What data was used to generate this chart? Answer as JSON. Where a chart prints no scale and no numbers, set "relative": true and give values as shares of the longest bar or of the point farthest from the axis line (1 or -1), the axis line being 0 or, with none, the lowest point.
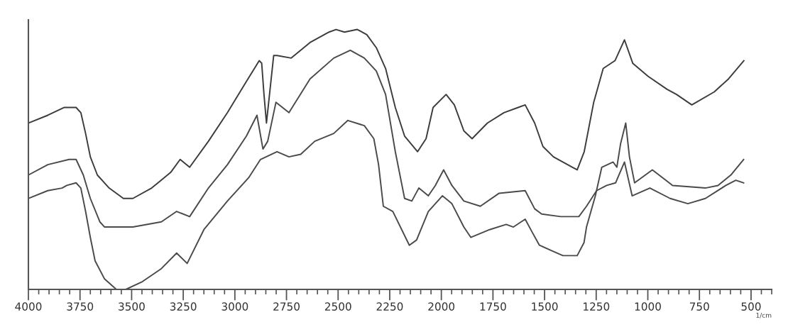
{
  "chart_data": {
    "type": "line",
    "xlabel": "1/cm",
    "relative": true,
    "line_style": "solid",
    "xlim": [
      4000,
      400
    ],
    "xticks": [
      4000,
      {
        "value": 3950,
        "label": null
      },
      {
        "value": 3900,
        "label": null
      },
      {
        "value": 3850,
        "label": null
      },
      {
        "value": 3800,
        "label": null
      },
      3750,
      {
        "value": 3700,
        "label": null
      },
      {
        "value": 3650,
        "label": null
      },
      {
        "value": 3600,
        "label": null
      },
      {
        "value": 3550,
        "label": null
      },
      3500,
      {
        "value": 3450,
        "label": null
      },
      {
        "value": 3400,
        "label": null
      },
      {
        "value": 3350,
        "label": null
      },
      {
        "value": 3300,
        "label": null
      },
      3250,
      {
        "value": 3200,
        "label": null
      },
      {
        "value": 3150,
        "label": null
      },
      {
        "value": 3100,
        "label": null
      },
      {
        "value": 3050,
        "label": null
      },
      3000,
      {
        "value": 2950,
        "label": null
      },
      {
        "value": 2900,
        "label": null
      },
      {
        "value": 2850,
        "label": null
      },
      {
        "value": 2800,
        "label": null
      },
      2750,
      {
        "value": 2700,
        "label": null
      },
      {
        "value": 2650,
        "label": null
      },
      {
        "value": 2600,
        "label": null
      },
      {
        "value": 2550,
        "label": null
      },
      2500,
      {
        "value": 2450,
        "label": null
      },
      {
        "value": 2400,
        "label": null
      },
      {
        "value": 2350,
        "label": null
      },
      {
        "value": 2300,
        "label": null
      },
      2250,
      {
        "value": 2200,
        "label": null
      },
      {
        "value": 2150,
        "label": null
      },
      {
        "value": 2100,
        "label": null
      },
      {
        "value": 2050,
        "label": null
      },
      2000,
      {
        "value": 1950,
        "label": null
      },
      {
        "value": 1900,
        "label": null
      },
      {
        "value": 1850,
        "label": null
      },
      {
        "value": 1800,
        "label": null
      },
      1750,
      {
        "value": 1700,
        "label": null
      },
      {
        "value": 1650,
        "label": null
      },
      {
        "value": 1600,
        "label": null
      },
      {
        "value": 1550,
        "label": null
      },
      1500,
      {
        "value": 1450,
        "label": null
      },
      {
        "value": 1400,
        "label": null
      },
      {
        "value": 1350,
        "label": null
      },
      {
        "value": 1300,
        "label": null
      },
      1250,
      {
        "value": 1200,
        "label": null
      },
      {
        "value": 1150,
        "label": null
      },
      {
        "value": 1100,
        "label": null
      },
      {
        "value": 1050,
        "label": null
      },
      1000,
      {
        "value": 950,
        "label": null
      },
      {
        "value": 900,
        "label": null
      },
      {
        "value": 850,
        "label": null
      },
      {
        "value": 800,
        "label": null
      },
      750,
      {
        "value": 700,
        "label": null
      },
      {
        "value": 650,
        "label": null
      },
      {
        "value": 600,
        "label": null
      },
      {
        "value": 550,
        "label": null
      },
      500,
      {
        "value": 450,
        "label": null
      },
      {
        "value": 400,
        "label": null
      }
    ],
    "series": [
      {
        "color": "#3c3c3c",
        "x": [
          4000,
          3906,
          3826,
          3769,
          3746,
          3723,
          3700,
          3666,
          3609,
          3540,
          3494,
          3403,
          3311,
          3265,
          3219,
          3128,
          3036,
          2944,
          2882,
          2870,
          2859,
          2847,
          2812,
          2796,
          2727,
          2636,
          2544,
          2510,
          2469,
          2407,
          2361,
          2315,
          2270,
          2223,
          2178,
          2115,
          2074,
          2040,
          1977,
          1937,
          1891,
          1851,
          1777,
          1697,
          1628,
          1594,
          1548,
          1508,
          1457,
          1365,
          1342,
          1308,
          1262,
          1216,
          1159,
          1113,
          1073,
          999,
          907,
          861,
          787,
          678,
          609,
          535
        ],
        "values": [
          0.64,
          0.67,
          0.7,
          0.7,
          0.68,
          0.6,
          0.51,
          0.44,
          0.39,
          0.35,
          0.35,
          0.39,
          0.45,
          0.5,
          0.47,
          0.57,
          0.68,
          0.8,
          0.88,
          0.87,
          0.75,
          0.64,
          0.9,
          0.9,
          0.89,
          0.95,
          0.99,
          1.0,
          0.99,
          1.0,
          0.98,
          0.93,
          0.85,
          0.7,
          0.59,
          0.53,
          0.58,
          0.7,
          0.75,
          0.71,
          0.61,
          0.58,
          0.64,
          0.68,
          0.7,
          0.71,
          0.64,
          0.55,
          0.51,
          0.47,
          0.46,
          0.53,
          0.72,
          0.85,
          0.88,
          0.96,
          0.87,
          0.82,
          0.77,
          0.75,
          0.71,
          0.76,
          0.81,
          0.88
        ]
      },
      {
        "color": "#4a4a4a",
        "x": [
          4000,
          3906,
          3803,
          3769,
          3734,
          3700,
          3654,
          3631,
          3494,
          3356,
          3282,
          3219,
          3128,
          3036,
          2944,
          2893,
          2864,
          2841,
          2801,
          2738,
          2636,
          2521,
          2441,
          2373,
          2315,
          2270,
          2223,
          2178,
          2143,
          2109,
          2063,
          2029,
          1989,
          1949,
          1891,
          1811,
          1720,
          1594,
          1548,
          1514,
          1422,
          1334,
          1297,
          1248,
          1199,
          1156,
          1113,
          1076,
          990,
          892,
          806,
          721,
          622,
          574,
          536
        ],
        "values": [
          0.44,
          0.48,
          0.5,
          0.5,
          0.44,
          0.35,
          0.26,
          0.24,
          0.24,
          0.26,
          0.3,
          0.28,
          0.39,
          0.48,
          0.59,
          0.67,
          0.54,
          0.57,
          0.72,
          0.68,
          0.81,
          0.89,
          0.92,
          0.89,
          0.84,
          0.75,
          0.53,
          0.35,
          0.34,
          0.39,
          0.36,
          0.4,
          0.46,
          0.4,
          0.34,
          0.32,
          0.37,
          0.38,
          0.31,
          0.29,
          0.28,
          0.28,
          0.32,
          0.38,
          0.4,
          0.41,
          0.49,
          0.36,
          0.39,
          0.35,
          0.33,
          0.35,
          0.4,
          0.42,
          0.41
        ]
      },
      {
        "color": "#4a4a4a",
        "x": [
          4000,
          3906,
          3837,
          3814,
          3769,
          3746,
          3723,
          3700,
          3677,
          3631,
          3574,
          3528,
          3448,
          3356,
          3282,
          3231,
          3150,
          3036,
          2933,
          2876,
          2796,
          2738,
          2681,
          2613,
          2521,
          2453,
          2373,
          2327,
          2304,
          2281,
          2235,
          2155,
          2120,
          2063,
          1995,
          1949,
          1891,
          1857,
          1766,
          1686,
          1651,
          1594,
          1560,
          1525,
          1468,
          1411,
          1342,
          1309,
          1297,
          1254,
          1223,
          1168,
          1150,
          1132,
          1107,
          1089,
          1064,
          978,
          880,
          721,
          660,
          598,
          536
        ],
        "values": [
          0.35,
          0.38,
          0.39,
          0.4,
          0.41,
          0.39,
          0.3,
          0.2,
          0.11,
          0.04,
          0.0,
          0.0,
          0.03,
          0.08,
          0.14,
          0.1,
          0.23,
          0.34,
          0.43,
          0.5,
          0.53,
          0.51,
          0.52,
          0.57,
          0.6,
          0.65,
          0.63,
          0.58,
          0.48,
          0.32,
          0.3,
          0.17,
          0.19,
          0.3,
          0.36,
          0.33,
          0.24,
          0.2,
          0.23,
          0.25,
          0.24,
          0.27,
          0.22,
          0.17,
          0.15,
          0.13,
          0.13,
          0.18,
          0.24,
          0.36,
          0.47,
          0.49,
          0.47,
          0.56,
          0.64,
          0.51,
          0.41,
          0.46,
          0.4,
          0.39,
          0.4,
          0.44,
          0.5
        ]
      }
    ]
  }
}
